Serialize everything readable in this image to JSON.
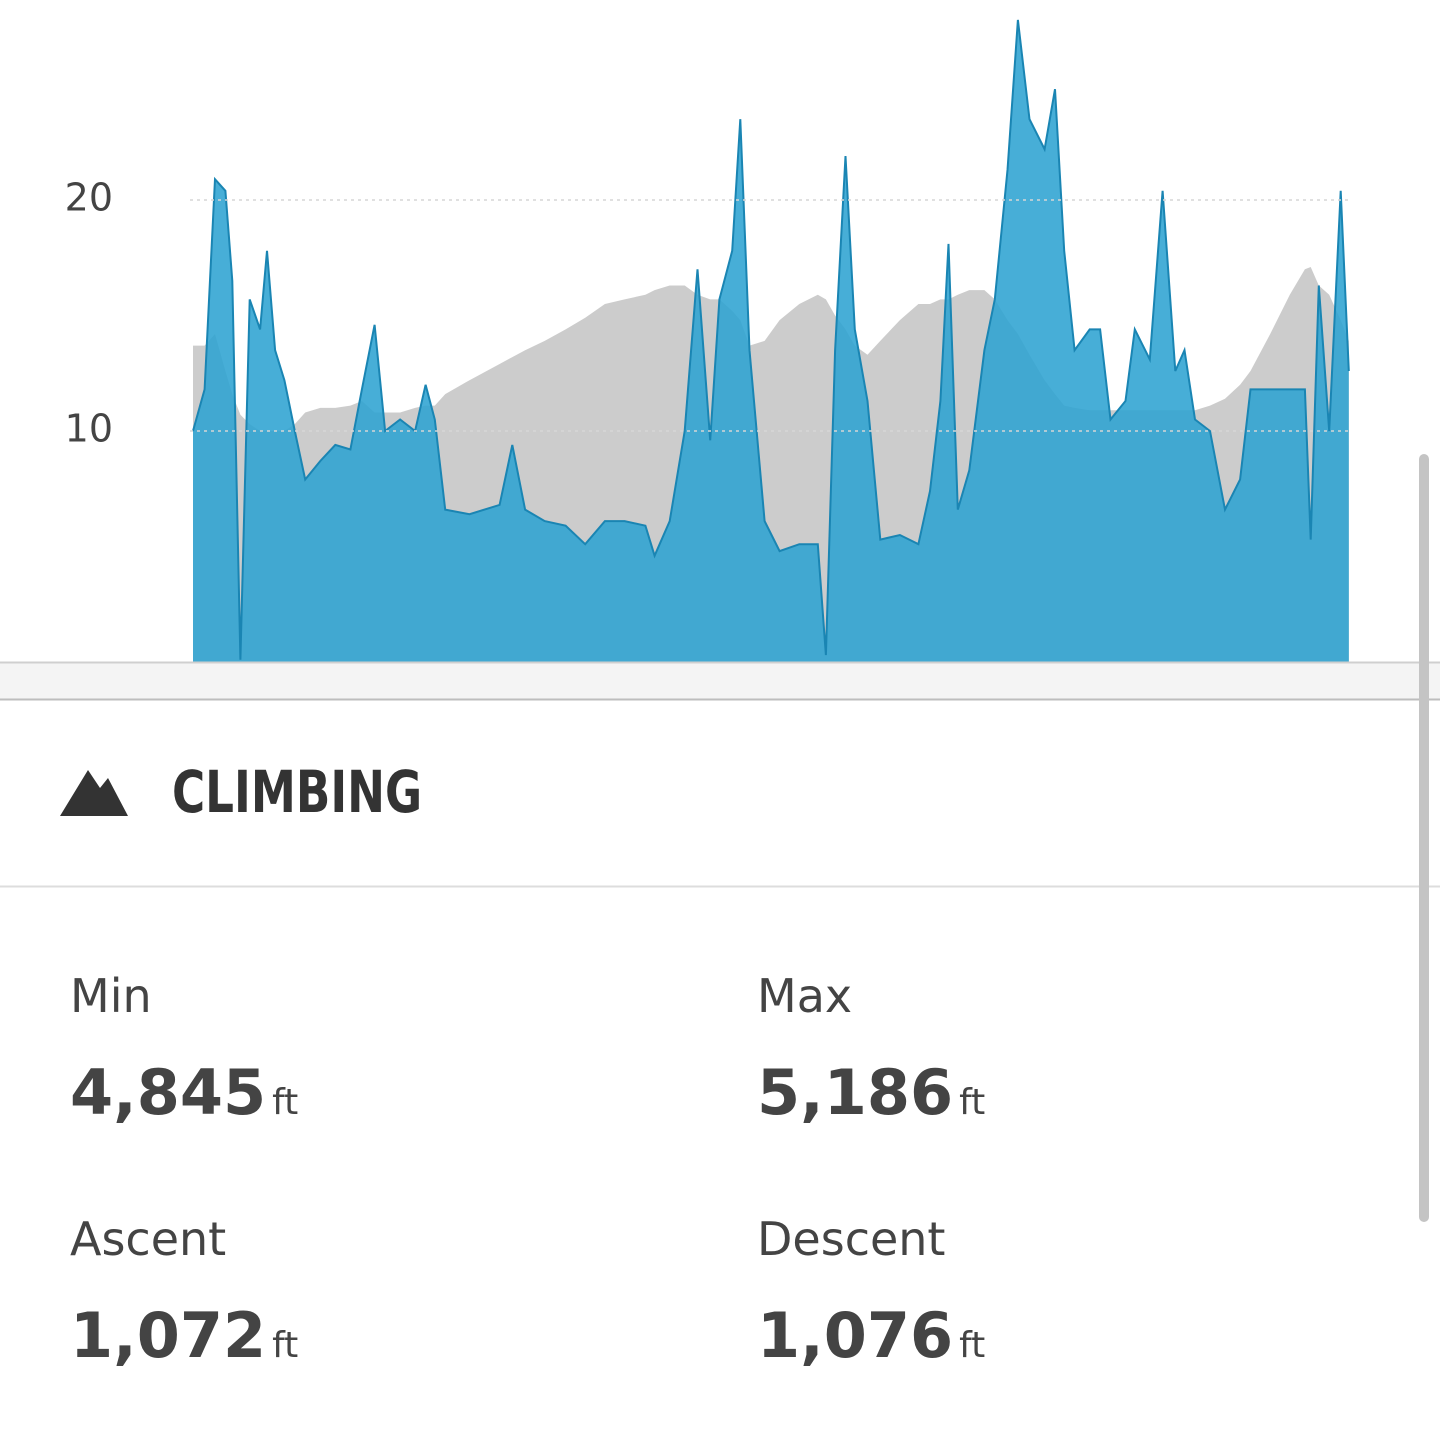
{
  "chart_data": {
    "type": "area",
    "x": [
      0,
      1.0,
      1.9,
      2.8,
      3.4,
      4.1,
      4.9,
      5.8,
      6.4,
      7.1,
      7.9,
      8.8,
      9.7,
      11.0,
      12.3,
      13.6,
      14.6,
      15.7,
      16.6,
      17.9,
      19.2,
      20.1,
      20.9,
      21.8,
      23.9,
      26.5,
      27.6,
      28.7,
      30.4,
      32.2,
      33.9,
      35.6,
      37.3,
      39.1,
      39.9,
      41.2,
      42.5,
      43.6,
      44.7,
      45.5,
      46.6,
      47.3,
      48.1,
      49.4,
      50.7,
      52.4,
      54.0,
      54.7,
      55.5,
      56.4,
      57.2,
      58.3,
      59.4,
      61.1,
      62.7,
      63.7,
      64.6,
      65.3,
      66.1,
      67.1,
      68.4,
      69.3,
      70.4,
      71.3,
      72.3,
      73.6,
      74.5,
      75.3,
      76.2,
      77.5,
      78.4,
      79.3,
      80.6,
      81.4,
      82.7,
      83.8,
      84.9,
      85.7,
      86.6,
      87.9,
      89.2,
      90.5,
      91.4,
      93.1,
      94.8,
      96.1,
      96.6,
      97.3,
      98.2,
      99.2,
      99.9
    ],
    "xlim": [
      0,
      100
    ],
    "series": [
      {
        "color": "#cccccc",
        "values": [
          13.7,
          13.7,
          14.2,
          12.6,
          11.6,
          10.7,
          10.3,
          10.0,
          10.0,
          10.0,
          10.0,
          10.3,
          10.8,
          11.0,
          11.0,
          11.1,
          11.3,
          10.8,
          10.8,
          10.8,
          11.0,
          11.1,
          11.1,
          11.6,
          12.2,
          12.9,
          13.2,
          13.5,
          13.9,
          14.4,
          14.9,
          15.5,
          15.7,
          15.9,
          16.1,
          16.3,
          16.3,
          15.9,
          15.7,
          15.7,
          15.2,
          14.8,
          13.7,
          13.9,
          14.8,
          15.5,
          15.9,
          15.7,
          15.0,
          14.4,
          13.7,
          13.3,
          13.9,
          14.8,
          15.5,
          15.5,
          15.7,
          15.7,
          15.9,
          16.1,
          16.1,
          15.7,
          14.8,
          14.2,
          13.3,
          12.2,
          11.6,
          11.1,
          11.0,
          10.9,
          10.9,
          10.9,
          10.9,
          10.9,
          10.9,
          10.9,
          10.9,
          10.9,
          10.9,
          11.1,
          11.4,
          12.0,
          12.6,
          14.2,
          15.9,
          17.0,
          17.1,
          16.3,
          15.9,
          14.8,
          13.9
        ]
      },
      {
        "color": "#2ea3d2",
        "values": [
          10.0,
          11.8,
          20.9,
          20.4,
          16.5,
          0.1,
          15.7,
          14.4,
          17.8,
          13.5,
          12.2,
          10.0,
          7.9,
          8.7,
          9.4,
          9.2,
          11.8,
          14.6,
          10.0,
          10.5,
          10.0,
          12.0,
          10.5,
          6.6,
          6.4,
          6.8,
          9.4,
          6.6,
          6.1,
          5.9,
          5.1,
          6.1,
          6.1,
          5.9,
          4.6,
          6.1,
          10.0,
          17.0,
          9.6,
          15.7,
          17.8,
          23.5,
          13.5,
          6.1,
          4.8,
          5.1,
          5.1,
          0.3,
          13.5,
          21.9,
          14.4,
          11.3,
          5.3,
          5.5,
          5.1,
          7.4,
          11.3,
          18.1,
          6.6,
          8.3,
          13.5,
          15.7,
          21.3,
          27.8,
          23.5,
          22.2,
          24.8,
          17.8,
          13.5,
          14.4,
          14.4,
          10.5,
          11.3,
          14.4,
          13.1,
          20.4,
          12.6,
          13.5,
          10.5,
          10.0,
          6.6,
          7.9,
          11.8,
          11.8,
          11.8,
          11.8,
          5.3,
          16.3,
          10.0,
          20.4,
          12.6
        ]
      }
    ],
    "ylim": [
      0,
      28.66
    ],
    "yticks": [
      10,
      20
    ],
    "grid": true
  },
  "section": {
    "title": "CLIMBING",
    "stats": [
      {
        "label": "Min",
        "value": "4,845",
        "unit": "ft"
      },
      {
        "label": "Max",
        "value": "5,186",
        "unit": "ft"
      },
      {
        "label": "Ascent",
        "value": "1,072",
        "unit": "ft"
      },
      {
        "label": "Descent",
        "value": "1,076",
        "unit": "ft"
      }
    ]
  }
}
